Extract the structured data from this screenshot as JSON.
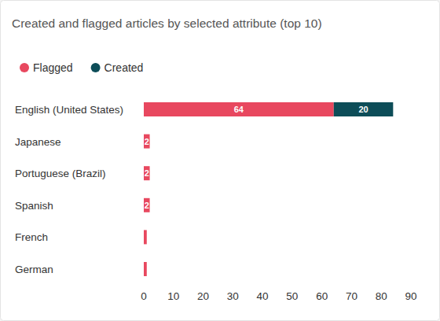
{
  "chart_data": {
    "type": "bar",
    "title": "Created and flagged articles by selected attribute (top 10)",
    "orientation": "horizontal",
    "stacked": true,
    "data_labels": true,
    "grid": false,
    "legend": "top-left",
    "categories": [
      "English (United States)",
      "Japanese",
      "Portuguese (Brazil)",
      "Spanish",
      "French",
      "German"
    ],
    "series": [
      {
        "name": "Flagged",
        "color": "#e8485f",
        "values": [
          64,
          2,
          2,
          2,
          1,
          1
        ]
      },
      {
        "name": "Created",
        "color": "#0d4d58",
        "values": [
          20,
          0,
          0,
          0,
          0,
          0
        ]
      }
    ],
    "xlim": [
      0,
      90
    ],
    "xticks": [
      0,
      10,
      20,
      30,
      40,
      50,
      60,
      70,
      80,
      90
    ]
  }
}
